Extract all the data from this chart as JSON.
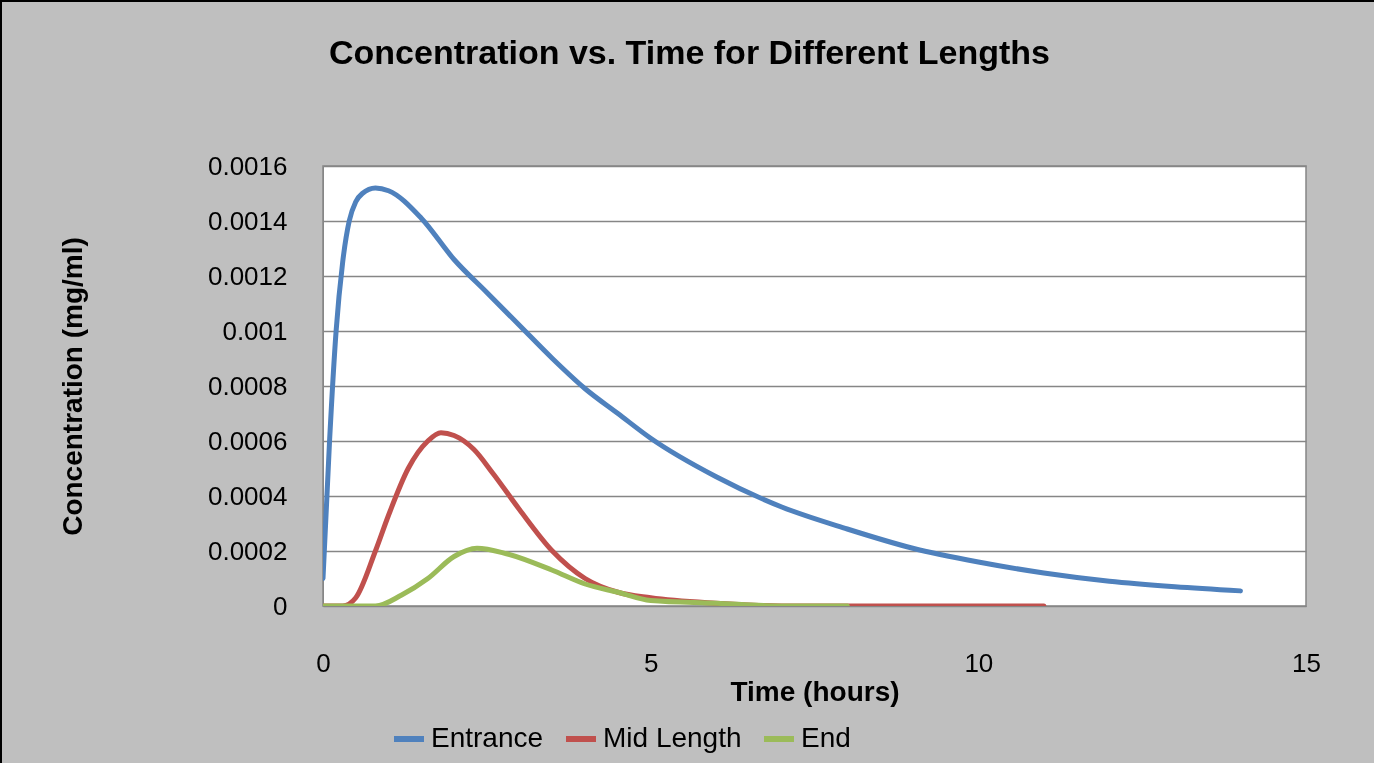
{
  "chart_data": {
    "type": "line",
    "title": "Concentration vs. Time for Different Lengths",
    "xlabel": "Time (hours)",
    "ylabel": "Concentration (mg/ml)",
    "xlim": [
      0,
      15
    ],
    "xticks": [
      0,
      5,
      10,
      15
    ],
    "ylim": [
      0,
      0.0016
    ],
    "yticks": [
      0,
      0.0002,
      0.0004,
      0.0006,
      0.0008,
      0.001,
      0.0012,
      0.0014,
      0.0016
    ],
    "grid": "y",
    "legend": "bottom",
    "marker": "none",
    "line_style": "solid",
    "series": [
      {
        "name": "Entrance",
        "color": "#4f81bd",
        "x": [
          0,
          0.1,
          0.2,
          0.3,
          0.4,
          0.5,
          0.6,
          0.8,
          1,
          1.5,
          2,
          2.5,
          3,
          3.5,
          4,
          4.5,
          5,
          6,
          7,
          8,
          9,
          10,
          11,
          12,
          13,
          14
        ],
        "values": [
          0.0001,
          0.0006,
          0.001,
          0.00125,
          0.0014,
          0.00147,
          0.0015,
          0.00152,
          0.00151,
          0.00141,
          0.00126,
          0.00114,
          0.00102,
          0.0009,
          0.00079,
          0.0007,
          0.00061,
          0.00047,
          0.00036,
          0.00028,
          0.00021,
          0.00016,
          0.00012,
          9e-05,
          7e-05,
          5.5e-05
        ]
      },
      {
        "name": "Mid Length",
        "color": "#c0504d",
        "x": [
          0,
          0.3,
          0.5,
          0.8,
          1,
          1.3,
          1.6,
          1.8,
          2,
          2.3,
          2.6,
          3,
          3.5,
          4,
          4.5,
          5,
          6,
          7,
          8,
          11
        ],
        "values": [
          0,
          0,
          3e-05,
          0.0002,
          0.00033,
          0.0005,
          0.0006,
          0.00063,
          0.00062,
          0.00057,
          0.00048,
          0.00035,
          0.0002,
          0.0001,
          5e-05,
          3e-05,
          1e-05,
          0,
          0,
          0
        ]
      },
      {
        "name": "End",
        "color": "#9bbb59",
        "x": [
          0,
          0.8,
          1.2,
          1.6,
          2,
          2.35,
          2.8,
          3.5,
          4,
          4.5,
          5,
          6,
          7,
          8
        ],
        "values": [
          0,
          0,
          4e-05,
          0.0001,
          0.00018,
          0.00021,
          0.00019,
          0.00013,
          8e-05,
          5e-05,
          2e-05,
          1e-05,
          0,
          0
        ]
      }
    ]
  }
}
